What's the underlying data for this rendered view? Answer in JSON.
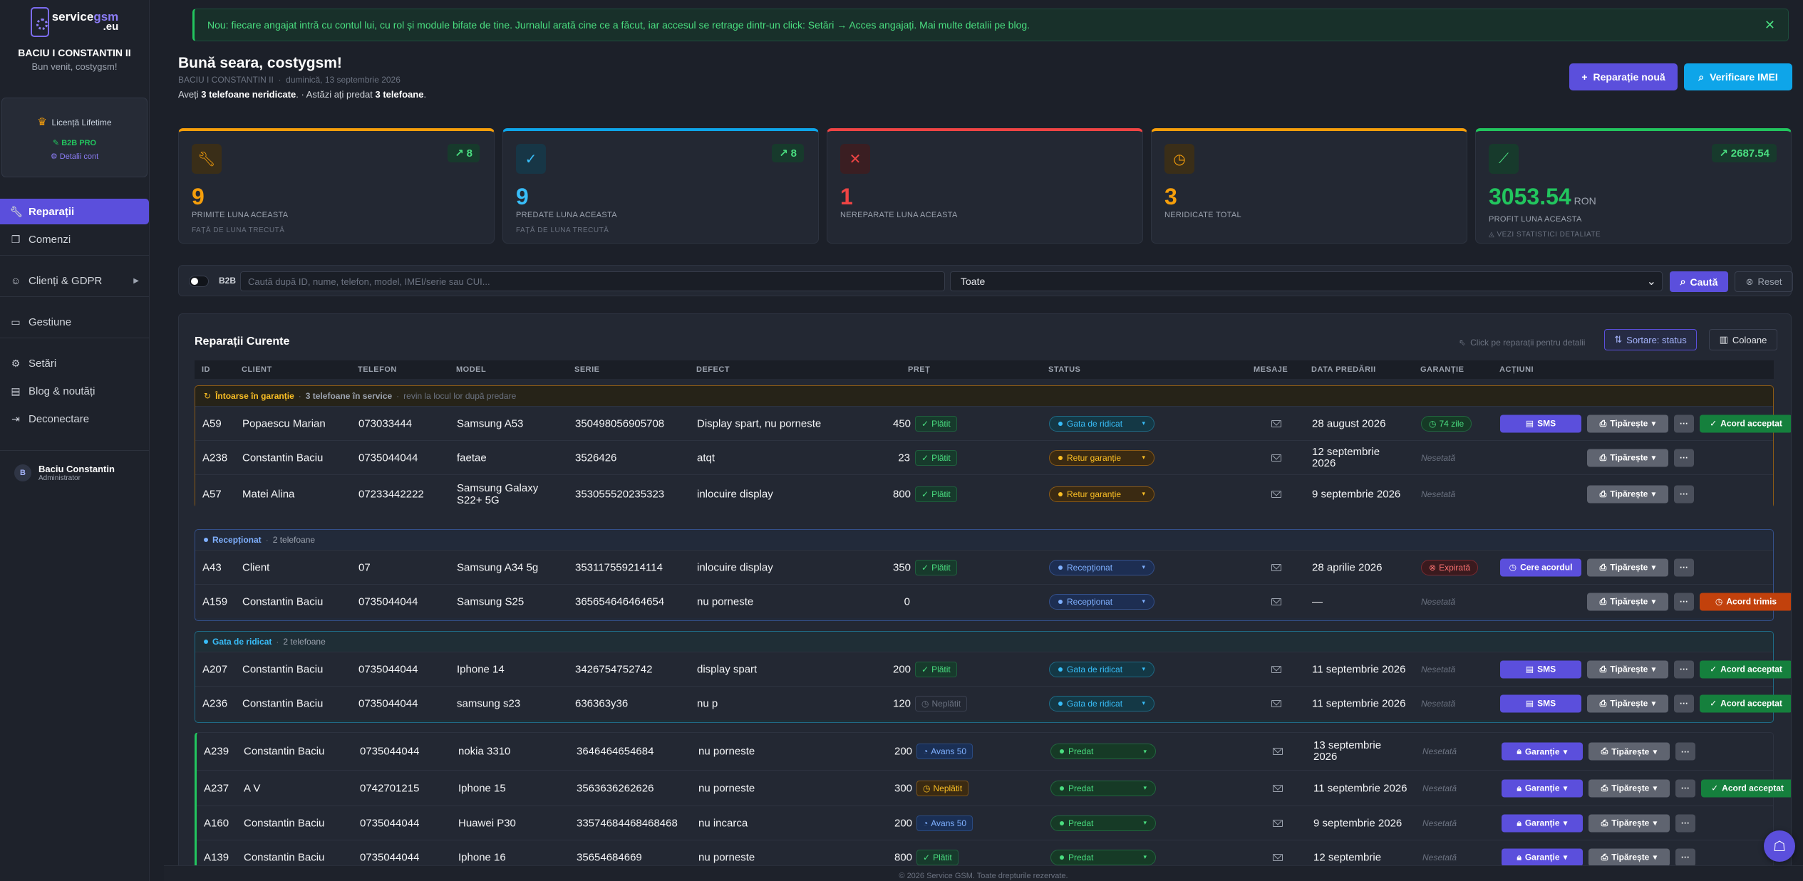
{
  "sidebar": {
    "logo": {
      "service": "service",
      "gsm": "gsm",
      "eu": ".eu"
    },
    "company": "BACIU I CONSTANTIN II",
    "welcome": "Bun venit, costygsm!",
    "license": {
      "title": "Licență Lifetime",
      "plan": "B2B PRO",
      "details": "Detalii cont"
    },
    "nav": [
      {
        "label": "Reparații",
        "icon": "wrench-icon"
      },
      {
        "label": "Comenzi",
        "icon": "box-icon"
      },
      {
        "label": "Clienți & GDPR",
        "icon": "users-icon"
      },
      {
        "label": "Gestiune",
        "icon": "folder-icon"
      },
      {
        "label": "Setări",
        "icon": "gear-icon"
      },
      {
        "label": "Blog & noutăți",
        "icon": "news-icon"
      },
      {
        "label": "Deconectare",
        "icon": "logout-icon"
      }
    ],
    "user": {
      "initial": "B",
      "name": "Baciu Constantin",
      "role": "Administrator"
    }
  },
  "alert": "Nou: fiecare angajat intră cu contul lui, cu rol și module bifate de tine. Jurnalul arată cine ce a făcut, iar accesul se retrage dintr-un click: Setări → Acces angajați. Mai multe detalii pe blog.",
  "greeting": {
    "title": "Bună seara, costygsm!",
    "company": "BACIU I CONSTANTIN II",
    "sep": "·",
    "date": "duminică, 13 septembrie 2026",
    "info_a": "Aveți ",
    "info_b": "3 telefoane neridicate",
    "info_c": ". · Astăzi ați predat ",
    "info_d": "3 telefoane",
    "info_e": "."
  },
  "actions": {
    "new_repair": "Reparație nouă",
    "imei": "Verificare IMEI"
  },
  "stats": [
    {
      "value": "9",
      "label": "PRIMITE LUNA ACEASTA",
      "sub": "FAȚĂ DE LUNA TRECUTĂ",
      "trend": "8",
      "color": "#f59e0b"
    },
    {
      "value": "9",
      "label": "PREDATE LUNA ACEASTA",
      "sub": "FAȚĂ DE LUNA TRECUTĂ",
      "trend": "8",
      "color": "#0ea5e9"
    },
    {
      "value": "1",
      "label": "NEREPARATE LUNA ACEASTA",
      "sub": "",
      "trend": "",
      "color": "#ef4444"
    },
    {
      "value": "3",
      "label": "NERIDICATE TOTAL",
      "sub": "",
      "trend": "",
      "color": "#f59e0b"
    },
    {
      "value": "3053.54",
      "unit": "RON",
      "label": "PROFIT LUNA ACEASTA",
      "sub": "VEZI STATISTICI DETALIATE",
      "trend": "2687.54",
      "color": "#22c55e"
    }
  ],
  "filter": {
    "b2b": "B2B",
    "placeholder": "Caută după ID, nume, telefon, model, IMEI/serie sau CUI...",
    "select": "Toate",
    "search": "Caută",
    "reset": "Reset"
  },
  "table": {
    "title": "Reparații Curente",
    "hint": "Click pe reparații pentru detalii",
    "sort": "Sortare: status",
    "columns_btn": "Coloane",
    "headers": [
      "ID",
      "CLIENT",
      "TELEFON",
      "MODEL",
      "SERIE",
      "DEFECT",
      "PREȚ",
      "STATUS",
      "MESAJE",
      "DATA PREDĂRII",
      "GARANȚIE",
      "ACȚIUNI"
    ],
    "groups": {
      "g1": {
        "title": "Întoarse în garanție",
        "count": "3 telefoane în service",
        "note": "revin la locul lor după predare"
      },
      "g2": {
        "title": "Recepționat",
        "count": "2 telefoane"
      },
      "g3": {
        "title": "Gata de ridicat",
        "count": "2 telefoane"
      }
    },
    "rows": [
      {
        "id": "A59",
        "client": "Popaescu Marian",
        "tel": "073033444",
        "model": "Samsung A53",
        "serie": "350498056905708",
        "defect": "Display spart, nu porneste",
        "pret": "450",
        "pay": "Plătit",
        "status": "Gata de ridicat",
        "date": "28 august 2026",
        "gar": "74 zile",
        "a1": "SMS",
        "a2": "Tipărește",
        "a4": "Acord acceptat"
      },
      {
        "id": "A238",
        "client": "Constantin Baciu",
        "tel": "0735044044",
        "model": "faetae",
        "serie": "3526426",
        "defect": "atqt",
        "pret": "23",
        "pay": "Plătit",
        "status": "Retur garanție",
        "date": "12 septembrie 2026",
        "gar": "Nesetată",
        "a2": "Tipărește"
      },
      {
        "id": "A57",
        "client": "Matei Alina",
        "tel": "07233442222",
        "model": "Samsung Galaxy S22+ 5G",
        "serie": "353055520235323",
        "defect": "inlocuire display",
        "pret": "800",
        "pay": "Plătit",
        "status": "Retur garanție",
        "date": "9 septembrie 2026",
        "gar": "Nesetată",
        "a2": "Tipărește"
      },
      {
        "id": "A43",
        "client": "Client",
        "tel": "07",
        "model": "Samsung A34 5g",
        "serie": "353117559214114",
        "defect": "inlocuire display",
        "pret": "350",
        "pay": "Plătit",
        "status": "Recepționat",
        "date": "28 aprilie 2026",
        "gar": "Expirată",
        "a1": "Cere acordul",
        "a2": "Tipărește"
      },
      {
        "id": "A159",
        "client": "Constantin Baciu",
        "tel": "0735044044",
        "model": "Samsung S25",
        "serie": "365654646464654",
        "defect": "nu porneste",
        "pret": "0",
        "pay": "",
        "status": "Recepționat",
        "date": "—",
        "gar": "Nesetată",
        "a2": "Tipărește",
        "a4": "Acord trimis"
      },
      {
        "id": "A207",
        "client": "Constantin Baciu",
        "tel": "0735044044",
        "model": "Iphone 14",
        "serie": "3426754752742",
        "defect": "display spart",
        "pret": "200",
        "pay": "Plătit",
        "status": "Gata de ridicat",
        "date": "11 septembrie 2026",
        "gar": "Nesetată",
        "a1": "SMS",
        "a2": "Tipărește",
        "a4": "Acord acceptat"
      },
      {
        "id": "A236",
        "client": "Constantin Baciu",
        "tel": "0735044044",
        "model": "samsung s23",
        "serie": "636363y36",
        "defect": "nu p",
        "pret": "120",
        "pay": "Neplătit",
        "status": "Gata de ridicat",
        "date": "11 septembrie 2026",
        "gar": "Nesetată",
        "a1": "SMS",
        "a2": "Tipărește",
        "a4": "Acord acceptat"
      },
      {
        "id": "A239",
        "client": "Constantin Baciu",
        "tel": "0735044044",
        "model": "nokia 3310",
        "serie": "3646464654684",
        "defect": "nu porneste",
        "pret": "200",
        "pay": "Avans 50",
        "status": "Predat",
        "date": "13 septembrie 2026",
        "gar": "Nesetată",
        "a1": "Garanție",
        "a2": "Tipărește"
      },
      {
        "id": "A237",
        "client": "A V",
        "tel": "0742701215",
        "model": "Iphone 15",
        "serie": "3563636262626",
        "defect": "nu porneste",
        "pret": "300",
        "pay": "Neplătit",
        "status": "Predat",
        "date": "11 septembrie 2026",
        "gar": "Nesetată",
        "a1": "Garanție",
        "a2": "Tipărește",
        "a4": "Acord acceptat"
      },
      {
        "id": "A160",
        "client": "Constantin Baciu",
        "tel": "0735044044",
        "model": "Huawei P30",
        "serie": "33574684468468468",
        "defect": "nu incarca",
        "pret": "200",
        "pay": "Avans 50",
        "status": "Predat",
        "date": "9 septembrie 2026",
        "gar": "Nesetată",
        "a1": "Garanție",
        "a2": "Tipărește"
      },
      {
        "id": "A139",
        "client": "Constantin Baciu",
        "tel": "0735044044",
        "model": "Iphone 16",
        "serie": "35654684669",
        "defect": "nu porneste",
        "pret": "800",
        "pay": "Plătit",
        "status": "Predat",
        "date": "12 septembrie",
        "gar": "Nesetată",
        "a1": "Garanție",
        "a2": "Tipărește"
      }
    ]
  },
  "footer": "© 2026 Service GSM. Toate drepturile rezervate."
}
